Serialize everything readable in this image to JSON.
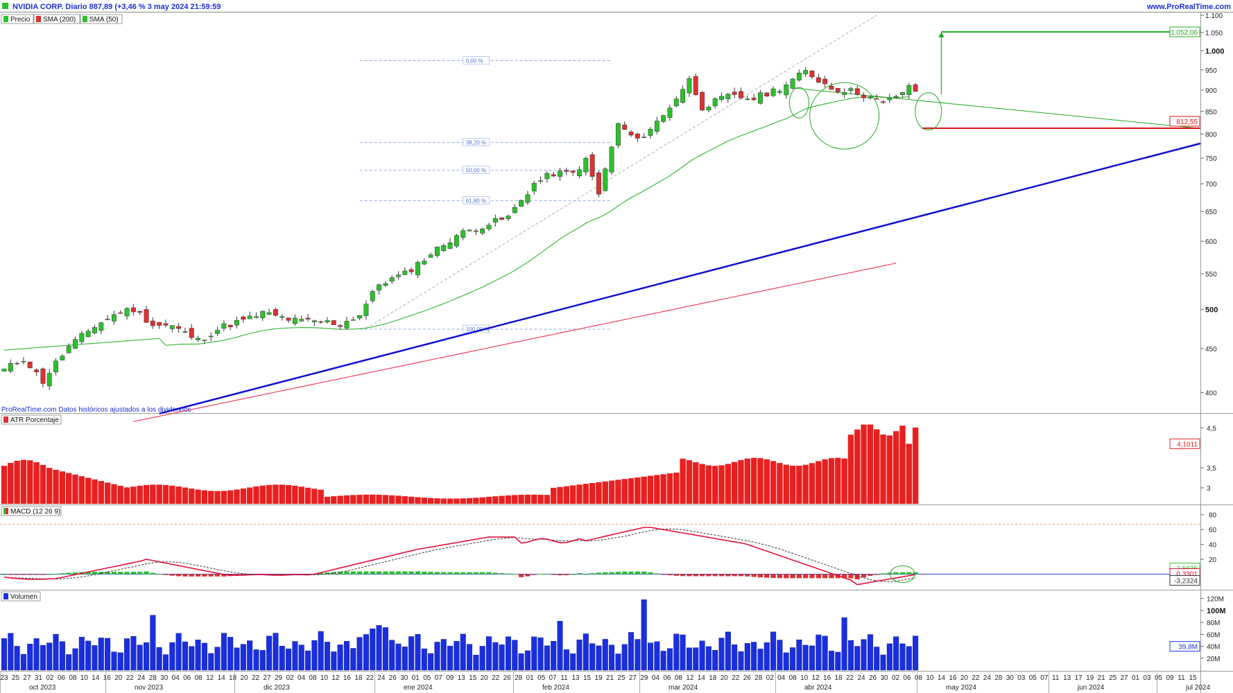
{
  "header": {
    "title": "NVIDIA CORP. Diario 887,89 (+3,46 % 3 may 2024 21:59:59",
    "site": "www.ProRealTime.com",
    "credit": "ProRealTime.com Datos históricos ajustados a los dividendos"
  },
  "colors": {
    "up": "#2bc12b",
    "down": "#e03030",
    "sma50": "#3dbb3d",
    "sma200": "#f04060",
    "trend": "#1010cc",
    "resist": "#22aa22",
    "support": "#dd1111",
    "macd": "#e0103a",
    "signal": "#333333",
    "volume": "#1a2fe0",
    "atr": "#e82020"
  },
  "legend": {
    "price": "Precio",
    "sma200": "SMA (200)",
    "sma50": "SMA (50)",
    "atr": "ATR Porcentaje",
    "macd": "MACD (12 26 9)",
    "volume": "Volumen"
  },
  "chart_data": [
    {
      "type": "candlestick",
      "panel": "price",
      "y_ticks": [
        "1.100",
        "1.050",
        "1.000",
        "950",
        "900",
        "850",
        "800",
        "750",
        "700",
        "650",
        "600",
        "550",
        "500",
        "450",
        "400"
      ],
      "y_ticks_bold": [
        "1.000",
        "500"
      ],
      "ylim": [
        380,
        1100
      ],
      "log_scale": true,
      "last_close": 887.89,
      "target_label": "1.052,06",
      "support_label": "812,55",
      "fib_labels": [
        "0,00 %",
        "38,20 %",
        "50,00 %",
        "61,80 %",
        "100,00 %"
      ],
      "fib_levels": [
        974,
        782,
        726,
        669,
        474
      ]
    },
    {
      "type": "bar",
      "panel": "atr",
      "y_ticks": [
        "4,5",
        "3,5",
        "3"
      ],
      "ylim": [
        2.6,
        4.8
      ],
      "last_value_label": "4,1011"
    },
    {
      "type": "histogram-line",
      "panel": "macd",
      "y_ticks": [
        "80",
        "60",
        "40",
        "20"
      ],
      "ylim": [
        -20,
        90
      ],
      "hline": 67,
      "last_labels": [
        "2,5635",
        "0,3301",
        "-3,2324"
      ]
    },
    {
      "type": "bar",
      "panel": "volume",
      "y_ticks": [
        "120M",
        "100M",
        "80M",
        "60M",
        "40M",
        "20M"
      ],
      "y_ticks_bold": [
        "100M"
      ],
      "ylim": [
        0,
        130
      ],
      "last_value_label": "39,8M"
    },
    {
      "type": "time-axis",
      "day_labels": [
        "23",
        "25",
        "27",
        "31",
        "02",
        "06",
        "08",
        "10",
        "14",
        "16",
        "20",
        "22",
        "24",
        "28",
        "30",
        "04",
        "06",
        "08",
        "12",
        "14",
        "18",
        "20",
        "22",
        "27",
        "29",
        "02",
        "04",
        "08",
        "10",
        "12",
        "16",
        "18",
        "22",
        "24",
        "26",
        "30",
        "01",
        "05",
        "07",
        "09",
        "13",
        "15",
        "20",
        "22",
        "26",
        "28",
        "01",
        "05",
        "07",
        "11",
        "13",
        "15",
        "19",
        "21",
        "25",
        "27",
        "29",
        "04",
        "06",
        "08",
        "12",
        "14",
        "18",
        "20",
        "22",
        "26",
        "28",
        "02",
        "04",
        "08",
        "10",
        "12",
        "16",
        "18",
        "22",
        "24",
        "26",
        "30",
        "02",
        "06",
        "08",
        "10",
        "14",
        "16",
        "20",
        "22",
        "24",
        "28",
        "30",
        "03",
        "05",
        "07",
        "11",
        "13",
        "17",
        "19",
        "21",
        "25",
        "27",
        "01",
        "03",
        "05",
        "09",
        "11",
        "15"
      ],
      "month_labels": [
        "oct 2023",
        "nov 2023",
        "dic 2023",
        "ene 2024",
        "feb 2024",
        "mar 2024",
        "abr 2024",
        "may 2024",
        "jun 2024",
        "jul 2024"
      ]
    }
  ]
}
